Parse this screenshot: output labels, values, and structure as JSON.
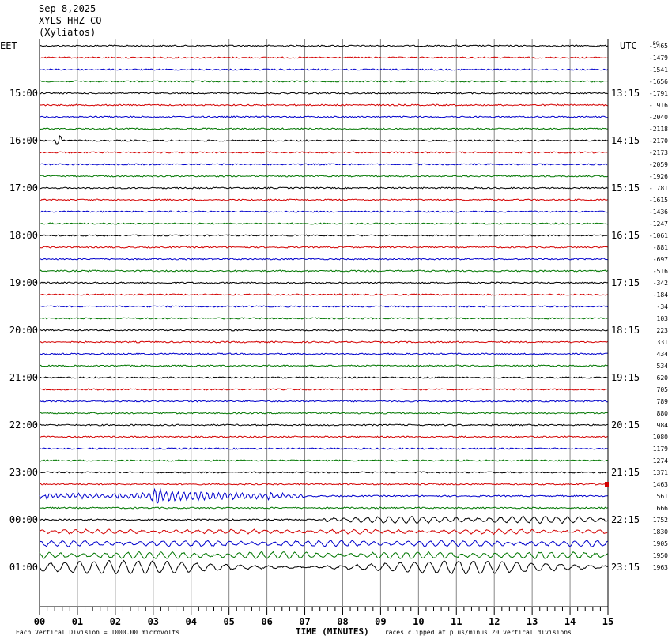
{
  "header": {
    "date": "Sep 8,2025",
    "station": "XYLS HHZ CQ --",
    "location": "(Xyliatos)"
  },
  "chart_data": {
    "type": "line",
    "title": "",
    "left_timezone": "EET",
    "right_timezone": "UTC",
    "dc_label": "DC",
    "xlabel": "TIME (MINUTES)",
    "xlim": [
      0,
      15
    ],
    "x_ticks": [
      "00",
      "01",
      "02",
      "03",
      "04",
      "05",
      "06",
      "07",
      "08",
      "09",
      "10",
      "11",
      "12",
      "13",
      "14",
      "15"
    ],
    "left_hour_labels": [
      "15:00",
      "16:00",
      "17:00",
      "18:00",
      "19:00",
      "20:00",
      "21:00",
      "22:00",
      "23:00",
      "00:00",
      "01:00"
    ],
    "right_hour_labels": [
      "13:15",
      "14:15",
      "15:15",
      "16:15",
      "17:15",
      "18:15",
      "19:15",
      "20:15",
      "21:15",
      "22:15",
      "23:15"
    ],
    "trace_colors": [
      "#000000",
      "#d40000",
      "#0000cc",
      "#007700"
    ],
    "dc_offsets": [
      -1465,
      -1479,
      -1541,
      -1656,
      -1791,
      -1916,
      -2040,
      -2118,
      -2170,
      -2173,
      -2059,
      -1926,
      -1781,
      -1615,
      -1436,
      -1247,
      -1061,
      -881,
      -697,
      -516,
      -342,
      -184,
      -34,
      103,
      223,
      331,
      434,
      534,
      620,
      705,
      789,
      880,
      984,
      1080,
      1179,
      1274,
      1371,
      1463,
      1561,
      1666,
      1752,
      1830,
      1905,
      1950,
      1963
    ],
    "events": [
      {
        "trace": 8,
        "start_min": 0.4,
        "end_min": 0.6,
        "peak": 9,
        "type": "local"
      },
      {
        "trace": 38,
        "start_min": 0.0,
        "end_min": 7.0,
        "peak": 9,
        "type": "teleseism"
      },
      {
        "trace": 40,
        "start_min": 7.5,
        "end_min": 15.0,
        "peak": 4,
        "type": "microseism"
      },
      {
        "trace": 41,
        "start_min": 0.0,
        "end_min": 15.0,
        "peak": 2.5,
        "type": "microseism"
      },
      {
        "trace": 42,
        "start_min": 0.0,
        "end_min": 15.0,
        "peak": 3.5,
        "type": "microseism"
      },
      {
        "trace": 43,
        "start_min": 0.0,
        "end_min": 15.0,
        "peak": 4,
        "type": "microseism"
      },
      {
        "trace": 44,
        "start_min": 0.0,
        "end_min": 15.0,
        "peak": 8,
        "type": "swell"
      }
    ],
    "footer_left": "Each Vertical Division = 1000.00 microvolts",
    "footer_right": "Traces clipped at plus/minus 20 vertical divisions",
    "grid": true
  }
}
